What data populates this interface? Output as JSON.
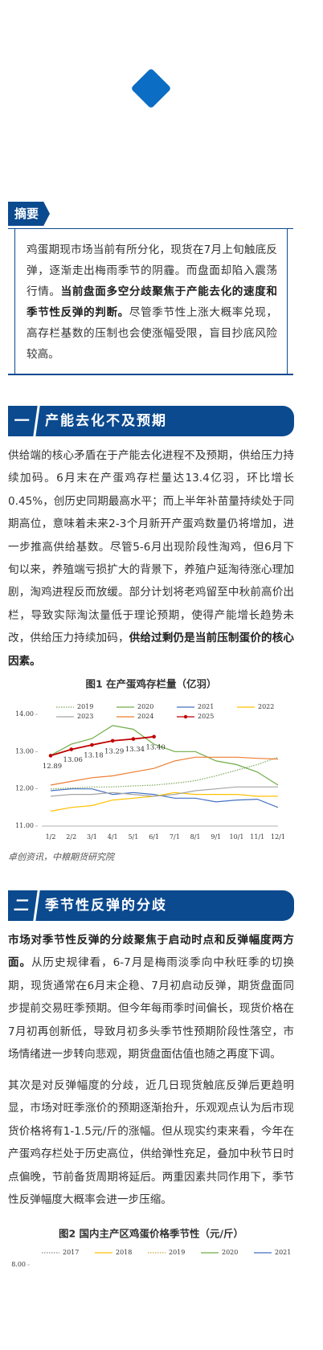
{
  "abstract": {
    "tag": "摘要",
    "runs": [
      {
        "text": "鸡蛋期现市场当前有所分化，现货在7月上旬触底反弹，逐渐走出梅雨季节的阴霾。而盘面却陷入震荡行情。",
        "bold": false
      },
      {
        "text": "当前盘面多空分歧聚焦于产能去化的速度和季节性反弹的判断。",
        "bold": true
      },
      {
        "text": "尽管季节性上涨大概率兑现，高存栏基数的压制也会使涨幅受限，盲目抄底风险较高。",
        "bold": false
      }
    ]
  },
  "sections": [
    {
      "number": "一",
      "title": "产能去化不及预期",
      "paragraphs": [
        [
          {
            "text": "供给端的核心矛盾在于产能去化进程不及预期，供给压力持续加码。6月末在产蛋鸡存栏量达13.4亿羽，环比增长0.45%，创历史同期最高水平；而上半年补苗量持续处于同期高位，意味着未来2-3个月新开产蛋鸡数量仍将增加，进一步推高供给基数。尽管5-6月出现阶段性淘鸡，但6月下旬以来，养殖端亏损扩大的背景下，养殖户延淘待涨心理加剧，淘鸡进程反而放缓。部分计划将老鸡留至中秋前高价出栏，导致实际淘汰量低于理论预期，使得产能增长趋势未改，供给压力持续加码，",
            "bold": false
          },
          {
            "text": "供给过剩仍是当前压制蛋价的核心因素。",
            "bold": true
          }
        ]
      ],
      "source": "卓创资讯，中粮期货研究院"
    },
    {
      "number": "二",
      "title": "季节性反弹的分歧",
      "paragraphs": [
        [
          {
            "text": "市场对季节性反弹的分歧聚焦于启动时点和反弹幅度两方面。",
            "bold": true
          },
          {
            "text": "从历史规律看，6-7月是梅雨淡季向中秋旺季的切换期，现货通常在6月末企稳、7月初启动反弹，期货盘面同步提前交易旺季预期。但今年每雨季时间偏长，现货价格在7月初再创新低，导致月初多头季节性预期阶段性落空，市场情绪进一步转向悲观，期货盘面估值也随之再度下调。",
            "bold": false
          }
        ],
        [
          {
            "text": "其次是对反弹幅度的分歧，近几日现货触底反弹后更趋明显，市场对旺季涨价的预期逐渐抬升，乐观观点认为后市现货价格将有1-1.5元/斤的涨幅。但从现实约束来看，今年在产蛋鸡存栏处于历史高位，供给弹性充足，叠加中秋节日时点偏晚，节前备货周期将延后。两重因素共同作用下，季节性反弹幅度大概率会进一步压缩。",
            "bold": false
          }
        ]
      ]
    }
  ],
  "chart_data": [
    {
      "type": "line",
      "title": "图1 在产蛋鸡存栏量（亿羽）",
      "categories": [
        "1/2",
        "2/2",
        "3/1",
        "4/1",
        "5/1",
        "6/1",
        "7/1",
        "8/1",
        "9/1",
        "10/1",
        "11/1",
        "12/1"
      ],
      "ylim": [
        11,
        14
      ],
      "yticks": [
        {
          "value": 11,
          "label": "11.00"
        },
        {
          "value": 12,
          "label": "12.00"
        },
        {
          "value": 13,
          "label": "13.00"
        },
        {
          "value": 14,
          "label": "14.00"
        }
      ],
      "series": [
        {
          "name": "2019",
          "color": "#7fa85a",
          "dash": true,
          "values": [
            12.0,
            12.02,
            12.05,
            12.05,
            12.08,
            12.1,
            12.15,
            12.22,
            12.35,
            12.5,
            12.65,
            12.85
          ]
        },
        {
          "name": "2020",
          "color": "#70ad47",
          "values": [
            12.9,
            13.2,
            13.35,
            13.7,
            13.6,
            13.2,
            13.0,
            13.0,
            12.75,
            12.65,
            12.45,
            12.1
          ]
        },
        {
          "name": "2021",
          "color": "#4472c4",
          "values": [
            11.95,
            12.0,
            12.0,
            11.85,
            11.9,
            11.85,
            11.75,
            11.75,
            11.65,
            11.7,
            11.72,
            11.5
          ]
        },
        {
          "name": "2022",
          "color": "#ffc000",
          "values": [
            11.4,
            11.5,
            11.55,
            11.7,
            11.75,
            11.8,
            11.9,
            11.85,
            11.85,
            11.85,
            11.8,
            11.8
          ]
        },
        {
          "name": "2023",
          "color": "#a5a5a5",
          "values": [
            11.8,
            11.85,
            11.85,
            11.9,
            11.85,
            11.8,
            11.85,
            11.95,
            12.0,
            12.05,
            12.05,
            12.05
          ]
        },
        {
          "name": "2024",
          "color": "#ed7d31",
          "values": [
            12.1,
            12.2,
            12.3,
            12.35,
            12.45,
            12.55,
            12.75,
            12.85,
            12.85,
            12.85,
            12.82,
            12.8
          ]
        },
        {
          "name": "2025",
          "color": "#c00000",
          "markers": true,
          "values": [
            12.89,
            13.06,
            13.18,
            13.29,
            13.34,
            13.4,
            null,
            null,
            null,
            null,
            null,
            null
          ],
          "value_labels": [
            "12.89",
            "13.06",
            "13.18",
            "13.29",
            "13.34",
            "13.40",
            null,
            null,
            null,
            null,
            null,
            null
          ]
        }
      ]
    },
    {
      "type": "line",
      "title": "图2 国内主产区鸡蛋价格季节性（元/斤）",
      "yticks": [
        {
          "value": 8,
          "label": "8.00"
        }
      ],
      "series": [
        {
          "name": "2017",
          "color": "#8c8c8c",
          "dash": true,
          "values": []
        },
        {
          "name": "2018",
          "color": "#ffc000",
          "values": []
        },
        {
          "name": "2019",
          "color": "#c9a640",
          "dash": true,
          "values": []
        },
        {
          "name": "2020",
          "color": "#70ad47",
          "values": []
        },
        {
          "name": "2021",
          "color": "#4472c4",
          "values": []
        }
      ]
    }
  ]
}
